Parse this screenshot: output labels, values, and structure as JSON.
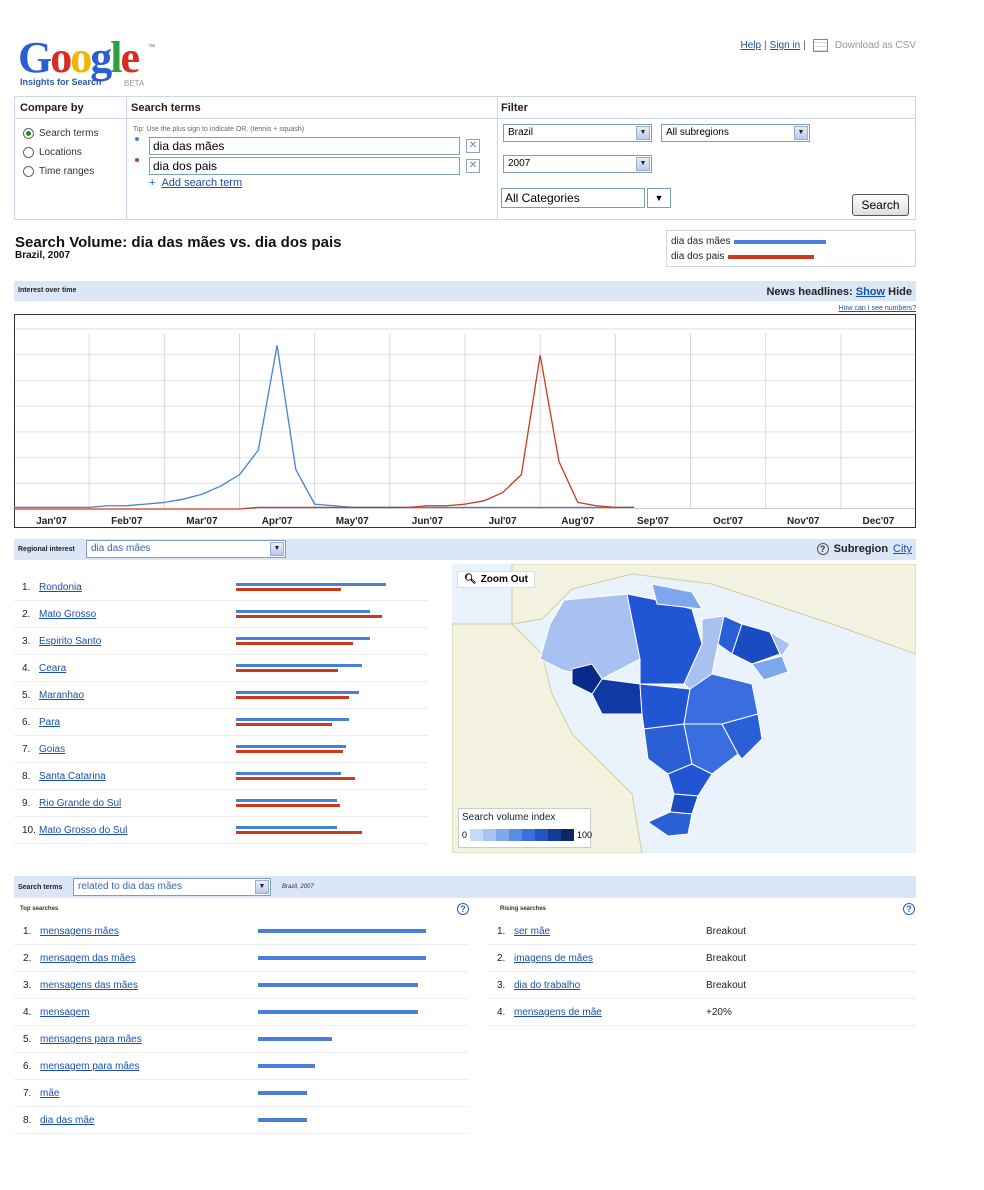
{
  "header": {
    "logo_text": "Google",
    "logo_sub": "Insights for Search",
    "logo_beta": "BETA",
    "links": {
      "help": "Help",
      "sign_in": "Sign in",
      "download_csv": "Download as CSV"
    }
  },
  "search_panel": {
    "compare_by_title": "Compare by",
    "search_terms_title": "Search terms",
    "filter_title": "Filter",
    "compare_options": [
      {
        "label": "Search terms",
        "selected": true
      },
      {
        "label": "Locations",
        "selected": false
      },
      {
        "label": "Time ranges",
        "selected": false
      }
    ],
    "tip": "Tip: Use the plus sign to indicate OR. (tennis + squash)",
    "terms": [
      "dia das mães",
      "dia dos pais"
    ],
    "add_term": "Add search term",
    "filters": {
      "country": "Brazil",
      "subregion": "All subregions",
      "year": "2007",
      "category": "All Categories"
    },
    "search_button": "Search"
  },
  "title": "Search Volume: dia das mães vs. dia dos pais",
  "subtitle": "Brazil, 2007",
  "legend": [
    {
      "name": "dia das mães",
      "color": "#4a7fd9"
    },
    {
      "name": "dia dos pais",
      "color": "#cc3a1e"
    }
  ],
  "interest_bar": {
    "label": "Interest over time",
    "news_label": "News headlines:",
    "show": "Show",
    "hide": "Hide",
    "how_numbers": "How can I see numbers?"
  },
  "chart_data": {
    "type": "line",
    "categories": [
      "Jan'07",
      "Feb'07",
      "Mar'07",
      "Apr'07",
      "May'07",
      "Jun'07",
      "Jul'07",
      "Aug'07",
      "Sep'07",
      "Oct'07",
      "Nov'07",
      "Dec'07"
    ],
    "x": [
      0.0,
      0.1,
      0.25,
      0.5,
      0.75,
      1.0,
      1.25,
      1.5,
      1.75,
      2.0,
      2.25,
      2.5,
      2.75,
      3.0,
      3.25,
      3.5,
      3.75,
      4.0,
      4.25,
      4.5,
      4.75,
      5.0,
      5.25,
      5.5,
      5.75,
      6.0,
      6.25,
      6.5,
      6.75,
      7.0,
      7.25,
      7.5,
      7.75,
      8.0,
      8.25
    ],
    "series": [
      {
        "name": "dia das mães",
        "color": "#4a7fd9",
        "values": [
          1,
          1,
          1,
          1,
          1,
          1,
          2,
          2,
          3,
          4,
          6,
          9,
          14,
          21,
          36,
          100,
          24,
          3,
          2,
          1,
          1,
          1,
          1,
          1,
          1,
          1,
          1,
          1,
          1,
          1,
          1,
          1,
          1,
          1,
          1
        ]
      },
      {
        "name": "dia dos pais",
        "color": "#cc3a1e",
        "values": [
          0,
          0,
          0,
          0,
          0,
          0,
          0,
          0,
          0,
          0,
          0,
          0,
          0,
          0,
          1,
          1,
          1,
          1,
          1,
          1,
          1,
          1,
          1,
          2,
          2,
          3,
          5,
          10,
          21,
          94,
          29,
          4,
          2,
          1,
          1
        ]
      }
    ],
    "ylim": [
      0,
      110
    ],
    "grid": true,
    "xlabel": "",
    "ylabel": ""
  },
  "regional": {
    "label": "Regional interest",
    "selected_term": "dia das mães",
    "subregion_label": "Subregion",
    "city_link": "City",
    "zoom_out": "Zoom Out",
    "svi_title": "Search volume index",
    "svi_min": "0",
    "svi_max": "100",
    "svi_colors": [
      "#c6d9f7",
      "#a7c3f2",
      "#7ea7ec",
      "#5a8ce6",
      "#3a70de",
      "#2156c4",
      "#123c96",
      "#0b2766"
    ],
    "rows": [
      {
        "rank": "1.",
        "name": "Rondonia",
        "a": 100,
        "b": 70
      },
      {
        "rank": "2.",
        "name": "Mato Grosso",
        "a": 89,
        "b": 97
      },
      {
        "rank": "3.",
        "name": "Espirito Santo",
        "a": 89,
        "b": 78
      },
      {
        "rank": "4.",
        "name": "Ceara",
        "a": 84,
        "b": 68
      },
      {
        "rank": "5.",
        "name": "Maranhao",
        "a": 82,
        "b": 75
      },
      {
        "rank": "6.",
        "name": "Para",
        "a": 75,
        "b": 64
      },
      {
        "rank": "7.",
        "name": "Goias",
        "a": 73,
        "b": 71
      },
      {
        "rank": "8.",
        "name": "Santa Catarina",
        "a": 70,
        "b": 79
      },
      {
        "rank": "9.",
        "name": "Rio Grande do Sul",
        "a": 67,
        "b": 69
      },
      {
        "rank": "10.",
        "name": "Mato Grosso do Sul",
        "a": 67,
        "b": 84
      }
    ]
  },
  "related": {
    "label": "Search terms",
    "selected": "related to dia das mães",
    "context": "Brazil, 2007",
    "top_title": "Top searches",
    "rising_title": "Rising searches",
    "top": [
      {
        "rank": "1.",
        "term": "mensagens mães",
        "value": 100
      },
      {
        "rank": "2.",
        "term": "mensagem das mães",
        "value": 100
      },
      {
        "rank": "3.",
        "term": "mensagens das mães",
        "value": 95
      },
      {
        "rank": "4.",
        "term": "mensagem",
        "value": 95
      },
      {
        "rank": "5.",
        "term": "mensagens para mães",
        "value": 44
      },
      {
        "rank": "6.",
        "term": "mensagem para mães",
        "value": 34
      },
      {
        "rank": "7.",
        "term": "mãe",
        "value": 29
      },
      {
        "rank": "8.",
        "term": "dia das mãe",
        "value": 29
      }
    ],
    "rising": [
      {
        "rank": "1.",
        "term": "ser mãe",
        "value": "Breakout"
      },
      {
        "rank": "2.",
        "term": "imagens de mães",
        "value": "Breakout"
      },
      {
        "rank": "3.",
        "term": "dia do trabalho",
        "value": "Breakout"
      },
      {
        "rank": "4.",
        "term": "mensagens de mãe",
        "value": "+20%"
      }
    ]
  }
}
